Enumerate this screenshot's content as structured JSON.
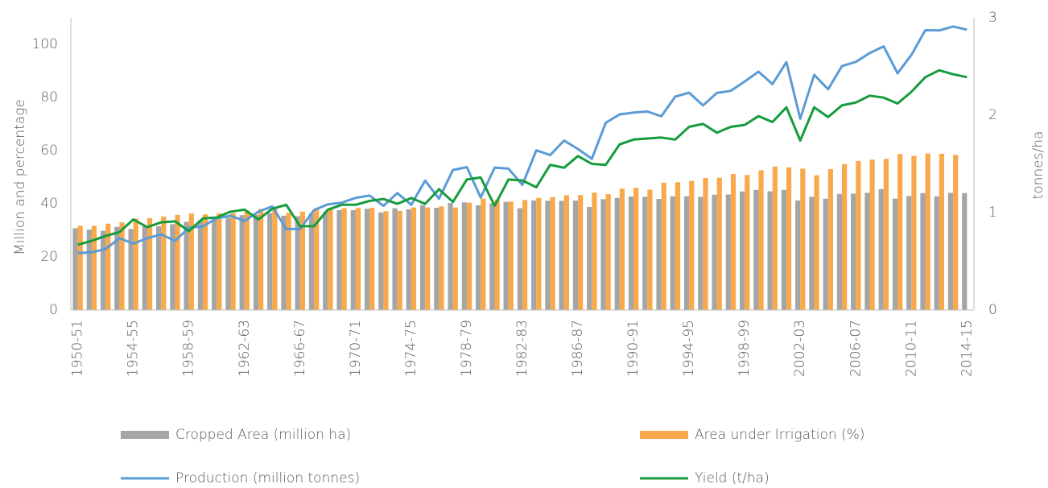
{
  "chart_data": {
    "type": "combo",
    "y_label": "Million and percentage",
    "y2_label": "tonnes/ha",
    "categories": [
      "1950-51",
      null,
      null,
      null,
      "1954-55",
      null,
      null,
      null,
      "1958-59",
      null,
      null,
      null,
      "1962-63",
      null,
      null,
      null,
      "1966-67",
      null,
      null,
      null,
      "1970-71",
      null,
      null,
      null,
      "1974-75",
      null,
      null,
      null,
      "1978-79",
      null,
      null,
      null,
      "1982-83",
      null,
      null,
      null,
      "1986-87",
      null,
      null,
      null,
      "1990-91",
      null,
      null,
      null,
      "1994-95",
      null,
      null,
      null,
      "1998-99",
      null,
      null,
      null,
      "2002-03",
      null,
      null,
      null,
      "2006-07",
      null,
      null,
      null,
      "2010-11",
      null,
      null,
      null,
      "2014-15"
    ],
    "ylim": [
      0,
      110
    ],
    "yticks": [
      0,
      20,
      40,
      60,
      80,
      100
    ],
    "y2lim": [
      0,
      3
    ],
    "y2ticks": [
      0,
      1,
      2,
      3
    ],
    "series": [
      {
        "name": "Cropped Area (million ha)",
        "type": "bar",
        "color": "#a5a5a5",
        "values": [
          30.8,
          30.3,
          29.8,
          31.3,
          30.5,
          31.5,
          31.5,
          32.3,
          33.2,
          33.8,
          34.1,
          34.7,
          35.7,
          35.8,
          36.5,
          35.5,
          35.3,
          36.4,
          36.9,
          37.6,
          37.6,
          38.1,
          36.7,
          38.3,
          37.9,
          39.5,
          38.5,
          40.3,
          40.5,
          39.4,
          40.2,
          40.7,
          38.3,
          41.2,
          41.1,
          41.1,
          41.2,
          38.8,
          41.7,
          42.2,
          42.7,
          42.6,
          41.8,
          42.8,
          42.8,
          42.6,
          43.4,
          43.5,
          44.6,
          45.2,
          44.7,
          45.2,
          41.2,
          42.6,
          41.9,
          43.7,
          43.8,
          44.1,
          45.5,
          41.9,
          42.9,
          44.0,
          42.8,
          44.1,
          44.0
        ]
      },
      {
        "name": "Area under Irrigation (%)",
        "type": "bar",
        "color": "#f9a94b",
        "values": [
          31.7,
          31.7,
          32.5,
          33,
          34.4,
          34.6,
          35.2,
          35.8,
          36.3,
          36.0,
          36.4,
          36.5,
          37.5,
          38.0,
          38.1,
          36.6,
          37.0,
          38.0,
          38.4,
          38.3,
          38.4,
          38.5,
          37.2,
          37.3,
          38.6,
          38.6,
          39.0,
          38.6,
          40.4,
          41.9,
          41.5,
          40.8,
          41.4,
          42.2,
          42.5,
          43.2,
          43.3,
          44.2,
          43.6,
          45.7,
          46.0,
          45.3,
          47.9,
          48.1,
          48.6,
          49.7,
          49.8,
          51.2,
          50.8,
          52.6,
          54.0,
          53.7,
          53.2,
          50.7,
          53.0,
          54.9,
          56.1,
          56.6,
          56.9,
          58.7,
          58.0,
          58.9,
          58.8,
          58.4,
          null
        ]
      },
      {
        "name": "Production (million tonnes)",
        "type": "line",
        "color": "#5b9bd5",
        "values": [
          21.5,
          21.7,
          23,
          27,
          25,
          27,
          28.5,
          26,
          31,
          31.5,
          34.5,
          35.5,
          33.5,
          37,
          39,
          30.5,
          30.5,
          37.6,
          39.8,
          40.4,
          42.2,
          43.1,
          39.2,
          44,
          39.6,
          48.7,
          41.9,
          52.7,
          53.8,
          42.3,
          53.6,
          53.2,
          47.1,
          60.1,
          58.3,
          63.8,
          60.6,
          56.9,
          70.5,
          73.6,
          74.3,
          74.7,
          72.9,
          80.3,
          81.8,
          77,
          81.7,
          82.5,
          86,
          89.7,
          85,
          93.3,
          72,
          88.5,
          83.1,
          91.8,
          93.4,
          96.7,
          99.2,
          89.1,
          96,
          105.3,
          105.2,
          106.7,
          105.5
        ]
      },
      {
        "name": "Yield (t/ha)",
        "type": "line",
        "axis": "y2",
        "color": "#169c3c",
        "values": [
          0.67,
          0.71,
          0.76,
          0.8,
          0.93,
          0.85,
          0.9,
          0.91,
          0.81,
          0.94,
          0.95,
          1.01,
          1.03,
          0.93,
          1.04,
          1.08,
          0.86,
          0.86,
          1.03,
          1.08,
          1.08,
          1.12,
          1.14,
          1.09,
          1.15,
          1.09,
          1.24,
          1.11,
          1.34,
          1.36,
          1.07,
          1.34,
          1.33,
          1.26,
          1.49,
          1.46,
          1.58,
          1.5,
          1.49,
          1.7,
          1.75,
          1.76,
          1.77,
          1.75,
          1.88,
          1.91,
          1.82,
          1.88,
          1.9,
          1.99,
          1.93,
          2.08,
          1.74,
          2.08,
          1.98,
          2.1,
          2.13,
          2.2,
          2.18,
          2.12,
          2.24,
          2.39,
          2.46,
          2.42,
          2.39
        ]
      }
    ]
  }
}
